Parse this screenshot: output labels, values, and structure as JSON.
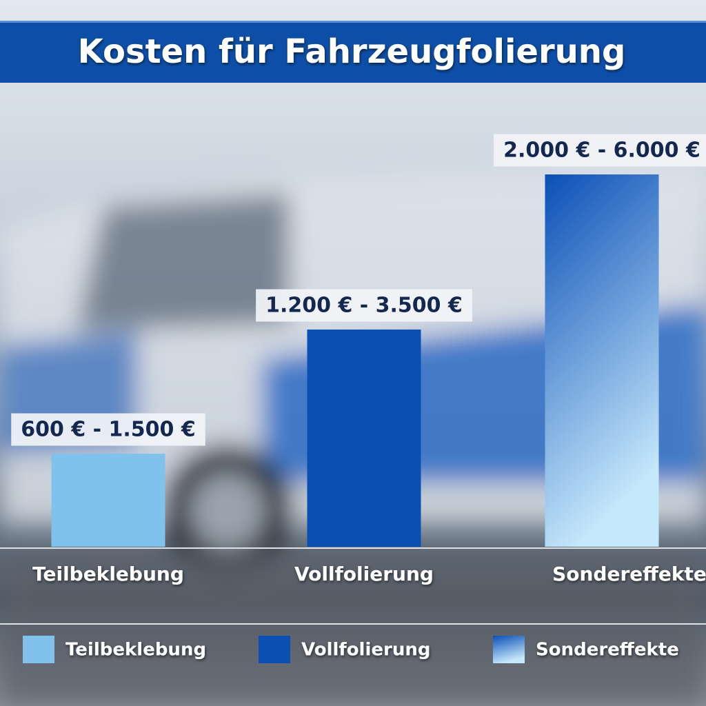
{
  "chart_data": {
    "type": "bar",
    "title": "Kosten für Fahrzeugfolierung",
    "categories": [
      "Teilbeklebung",
      "Vollfolierung",
      "Sondereffekte"
    ],
    "low": [
      600,
      1200,
      2000
    ],
    "values": [
      1500,
      3500,
      6000
    ],
    "value_labels": [
      "600 € - 1.500 €",
      "1.200 € - 3.500 €",
      "2.000 € - 6.000 €"
    ],
    "colors": [
      "#80c2ec",
      "#0b4fb2",
      [
        "#0b4fb6",
        "#c6e8fb"
      ]
    ],
    "legend": "bottom"
  }
}
